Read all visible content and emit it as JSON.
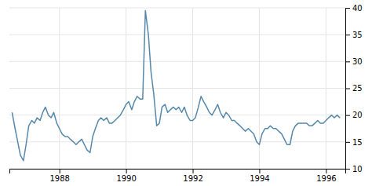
{
  "chart_data": {
    "type": "line",
    "color": "#5588aa",
    "grid": true,
    "xlim": [
      1986.5,
      1996.58
    ],
    "ylim": [
      10,
      40
    ],
    "xticks": [
      1988,
      1990,
      1992,
      1994,
      1996
    ],
    "yticks": [
      10,
      15,
      20,
      25,
      30,
      35,
      40
    ],
    "x": [
      1986.58,
      1986.67,
      1986.75,
      1986.83,
      1986.92,
      1987.0,
      1987.08,
      1987.17,
      1987.25,
      1987.33,
      1987.42,
      1987.5,
      1987.58,
      1987.67,
      1987.75,
      1987.83,
      1987.92,
      1988.0,
      1988.08,
      1988.17,
      1988.25,
      1988.33,
      1988.42,
      1988.5,
      1988.58,
      1988.67,
      1988.75,
      1988.83,
      1988.92,
      1989.0,
      1989.08,
      1989.17,
      1989.25,
      1989.33,
      1989.42,
      1989.5,
      1989.58,
      1989.67,
      1989.75,
      1989.83,
      1989.92,
      1990.0,
      1990.08,
      1990.17,
      1990.25,
      1990.33,
      1990.42,
      1990.5,
      1990.58,
      1990.67,
      1990.75,
      1990.83,
      1990.92,
      1991.0,
      1991.08,
      1991.17,
      1991.25,
      1991.33,
      1991.42,
      1991.5,
      1991.58,
      1991.67,
      1991.75,
      1991.83,
      1991.92,
      1992.0,
      1992.08,
      1992.17,
      1992.25,
      1992.33,
      1992.42,
      1992.5,
      1992.58,
      1992.67,
      1992.75,
      1992.83,
      1992.92,
      1993.0,
      1993.08,
      1993.17,
      1993.25,
      1993.33,
      1993.42,
      1993.5,
      1993.58,
      1993.67,
      1993.75,
      1993.83,
      1993.92,
      1994.0,
      1994.08,
      1994.17,
      1994.25,
      1994.33,
      1994.42,
      1994.5,
      1994.58,
      1994.67,
      1994.75,
      1994.83,
      1994.92,
      1995.0,
      1995.08,
      1995.17,
      1995.25,
      1995.33,
      1995.42,
      1995.5,
      1995.58,
      1995.67,
      1995.75,
      1995.83,
      1995.92,
      1996.0,
      1996.08,
      1996.17,
      1996.25,
      1996.33,
      1996.42
    ],
    "values": [
      20.5,
      17.5,
      15.0,
      12.5,
      11.5,
      14.5,
      18.0,
      19.0,
      18.5,
      19.5,
      19.0,
      20.5,
      21.5,
      20.0,
      19.5,
      20.5,
      18.5,
      17.5,
      16.5,
      16.0,
      16.0,
      15.5,
      15.0,
      14.5,
      15.0,
      15.5,
      14.5,
      13.5,
      13.0,
      16.0,
      17.5,
      19.0,
      19.5,
      19.0,
      19.5,
      18.5,
      18.5,
      19.0,
      19.5,
      20.0,
      21.0,
      22.0,
      22.5,
      21.0,
      22.5,
      23.5,
      23.0,
      23.0,
      39.5,
      35.0,
      28.0,
      24.0,
      18.0,
      18.5,
      21.5,
      22.0,
      20.5,
      21.0,
      21.5,
      21.0,
      21.5,
      20.5,
      21.5,
      20.0,
      19.0,
      19.0,
      19.5,
      21.5,
      23.5,
      22.5,
      21.5,
      20.5,
      20.0,
      21.0,
      22.0,
      20.5,
      19.5,
      20.5,
      20.0,
      19.0,
      19.0,
      18.5,
      18.0,
      17.5,
      17.0,
      17.5,
      17.0,
      16.5,
      15.0,
      14.5,
      16.5,
      17.5,
      17.5,
      18.0,
      17.5,
      17.5,
      17.0,
      16.5,
      15.5,
      14.5,
      14.5,
      17.0,
      18.0,
      18.5,
      18.5,
      18.5,
      18.5,
      18.0,
      18.0,
      18.5,
      19.0,
      18.5,
      18.5,
      19.0,
      19.5,
      20.0,
      19.5,
      20.0,
      19.5
    ]
  }
}
